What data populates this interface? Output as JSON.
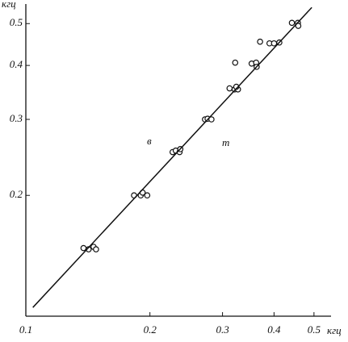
{
  "chart_data": {
    "type": "scatter",
    "x_label": "кгц",
    "y_label": "кгц",
    "annotations": [
      "в",
      "т"
    ],
    "log_x": true,
    "log_y": true,
    "xlim": [
      0.1,
      0.55
    ],
    "ylim": [
      0.105,
      0.555
    ],
    "xticks": [
      0.1,
      0.2,
      0.3,
      0.4,
      0.5
    ],
    "yticks": [
      0.2,
      0.3,
      0.4,
      0.5
    ],
    "series": [
      {
        "kind": "points",
        "color": "#111111",
        "x": [
          0.138,
          0.142,
          0.146,
          0.148,
          0.183,
          0.19,
          0.192,
          0.197,
          0.227,
          0.231,
          0.236,
          0.237,
          0.272,
          0.276,
          0.282,
          0.312,
          0.321,
          0.327,
          0.324,
          0.322,
          0.353,
          0.362,
          0.363,
          0.37,
          0.39,
          0.4,
          0.412,
          0.442,
          0.457,
          0.458
        ],
        "values": [
          0.151,
          0.15,
          0.152,
          0.15,
          0.2,
          0.2,
          0.203,
          0.2,
          0.252,
          0.254,
          0.252,
          0.256,
          0.3,
          0.301,
          0.3,
          0.354,
          0.352,
          0.352,
          0.357,
          0.406,
          0.404,
          0.406,
          0.397,
          0.454,
          0.45,
          0.45,
          0.452,
          0.502,
          0.502,
          0.494
        ]
      },
      {
        "kind": "line",
        "color": "#111111",
        "x": [
          0.104,
          0.494
        ],
        "values": [
          0.11,
          0.545
        ]
      }
    ]
  }
}
